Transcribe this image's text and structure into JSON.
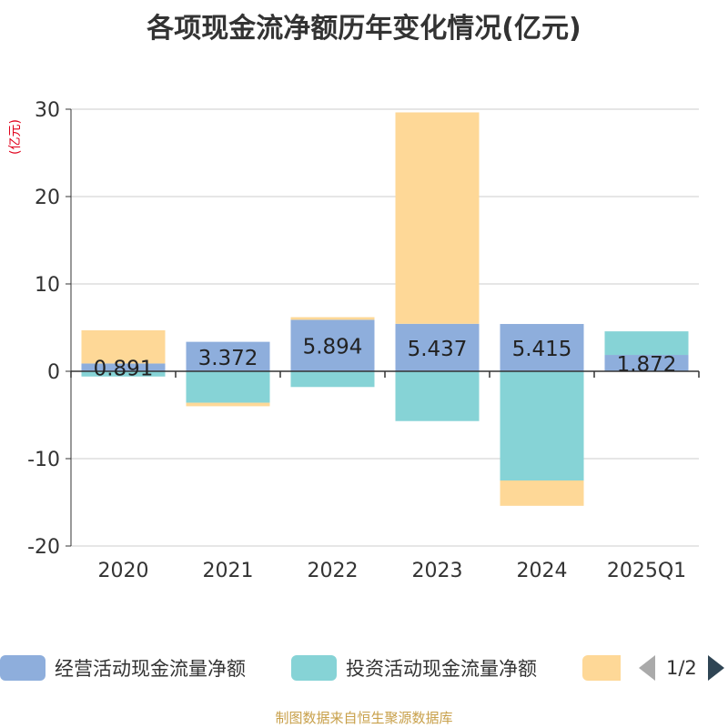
{
  "title": "各项现金流净额历年变化情况(亿元)",
  "unit_label": "(亿元)",
  "source": "制图数据来自恒生聚源数据库",
  "pager": {
    "text": "1/2"
  },
  "colors": {
    "operating": "#8eaedc",
    "investing": "#86d3d6",
    "financing": "#fed897"
  },
  "chart_data": {
    "type": "bar",
    "stacked": true,
    "categories": [
      "2020",
      "2021",
      "2022",
      "2023",
      "2024",
      "2025Q1"
    ],
    "ylim": [
      -20,
      30
    ],
    "yticks": [
      -20,
      -10,
      0,
      10,
      20,
      30
    ],
    "grid": true,
    "legend_position": "bottom",
    "series": [
      {
        "name": "经营活动现金流量净额",
        "values": [
          0.891,
          3.372,
          5.894,
          5.437,
          5.415,
          1.872
        ],
        "show_labels": true
      },
      {
        "name": "投资活动现金流量净额",
        "values": [
          -0.6,
          -3.6,
          -1.8,
          -5.7,
          -12.5,
          2.7
        ],
        "show_labels": false
      },
      {
        "name": "",
        "values": [
          3.8,
          -0.4,
          0.3,
          24.2,
          -2.9,
          0
        ],
        "show_labels": false
      }
    ],
    "data_labels": [
      "0.891",
      "3.372",
      "5.894",
      "5.437",
      "5.415",
      "1.872"
    ]
  }
}
